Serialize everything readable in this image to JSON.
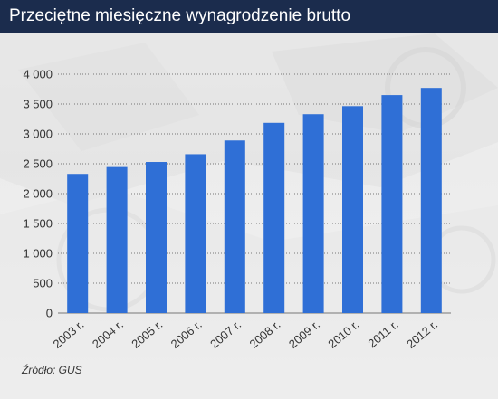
{
  "header": {
    "title": "Przeciętne miesięczne wynagrodzenie brutto"
  },
  "footer": {
    "source": "Źródło: GUS"
  },
  "colors": {
    "header_bg": "#1b2c4d",
    "bar": "#2f6fd6",
    "grid": "#777777"
  },
  "chart_data": {
    "type": "bar",
    "title": "Przeciętne miesięczne wynagrodzenie brutto",
    "xlabel": "",
    "ylabel": "",
    "categories": [
      "2003 r.",
      "2004 r.",
      "2005 r.",
      "2006 r.",
      "2007 r.",
      "2008 r.",
      "2009 r.",
      "2010 r.",
      "2011 r.",
      "2012 r."
    ],
    "values": [
      2330,
      2445,
      2530,
      2660,
      2890,
      3185,
      3330,
      3465,
      3650,
      3770
    ],
    "ylim": [
      0,
      4000
    ],
    "yticks": [
      0,
      500,
      1000,
      1500,
      2000,
      2500,
      3000,
      3500,
      4000
    ],
    "ytick_labels": [
      "0",
      "500",
      "1 000",
      "1 500",
      "2 000",
      "2 500",
      "3 000",
      "3 500",
      "4 000"
    ],
    "grid": "horizontal-dotted",
    "legend": "none"
  }
}
